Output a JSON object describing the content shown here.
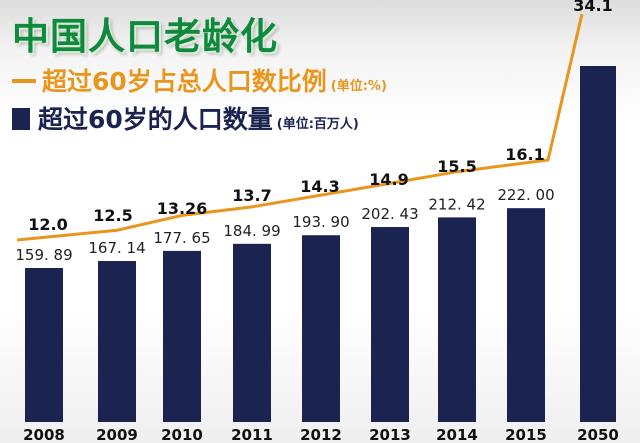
{
  "header": {
    "title": "中国人口老龄化",
    "ratio_legend": "超过60岁占总人口数比例",
    "ratio_unit": "(单位:%)",
    "count_legend": "超过60岁的人口数量",
    "count_unit": "(单位:百万人)"
  },
  "colors": {
    "bar": "#1b2350",
    "line": "#e8961e",
    "title": "#0f8a3c"
  },
  "chart_data": {
    "type": "bar",
    "categories": [
      "2008",
      "2009",
      "2010",
      "2011",
      "2012",
      "2013",
      "2014",
      "2015",
      "2050"
    ],
    "series": [
      {
        "name": "超过60岁的人口数量",
        "type": "bar",
        "values": [
          159.89,
          167.14,
          177.65,
          184.99,
          193.9,
          202.43,
          212.42,
          222.0,
          480
        ],
        "labels": [
          "159. 89",
          "167. 14",
          "177. 65",
          "184. 99",
          "193. 90",
          "202. 43",
          "212. 42",
          "222. 00",
          ""
        ]
      },
      {
        "name": "超过60岁占总人口数比例",
        "type": "line",
        "values": [
          12.0,
          12.5,
          13.26,
          13.7,
          14.3,
          14.9,
          15.5,
          16.1,
          34.1
        ],
        "labels": [
          "12.0",
          "12.5",
          "13.26",
          "13.7",
          "14.3",
          "14.9",
          "15.5",
          "16.1",
          "34.1"
        ]
      }
    ],
    "title": "中国人口老龄化",
    "xlabel": "",
    "ylabel": "",
    "grid": false,
    "legend": "top-left"
  }
}
